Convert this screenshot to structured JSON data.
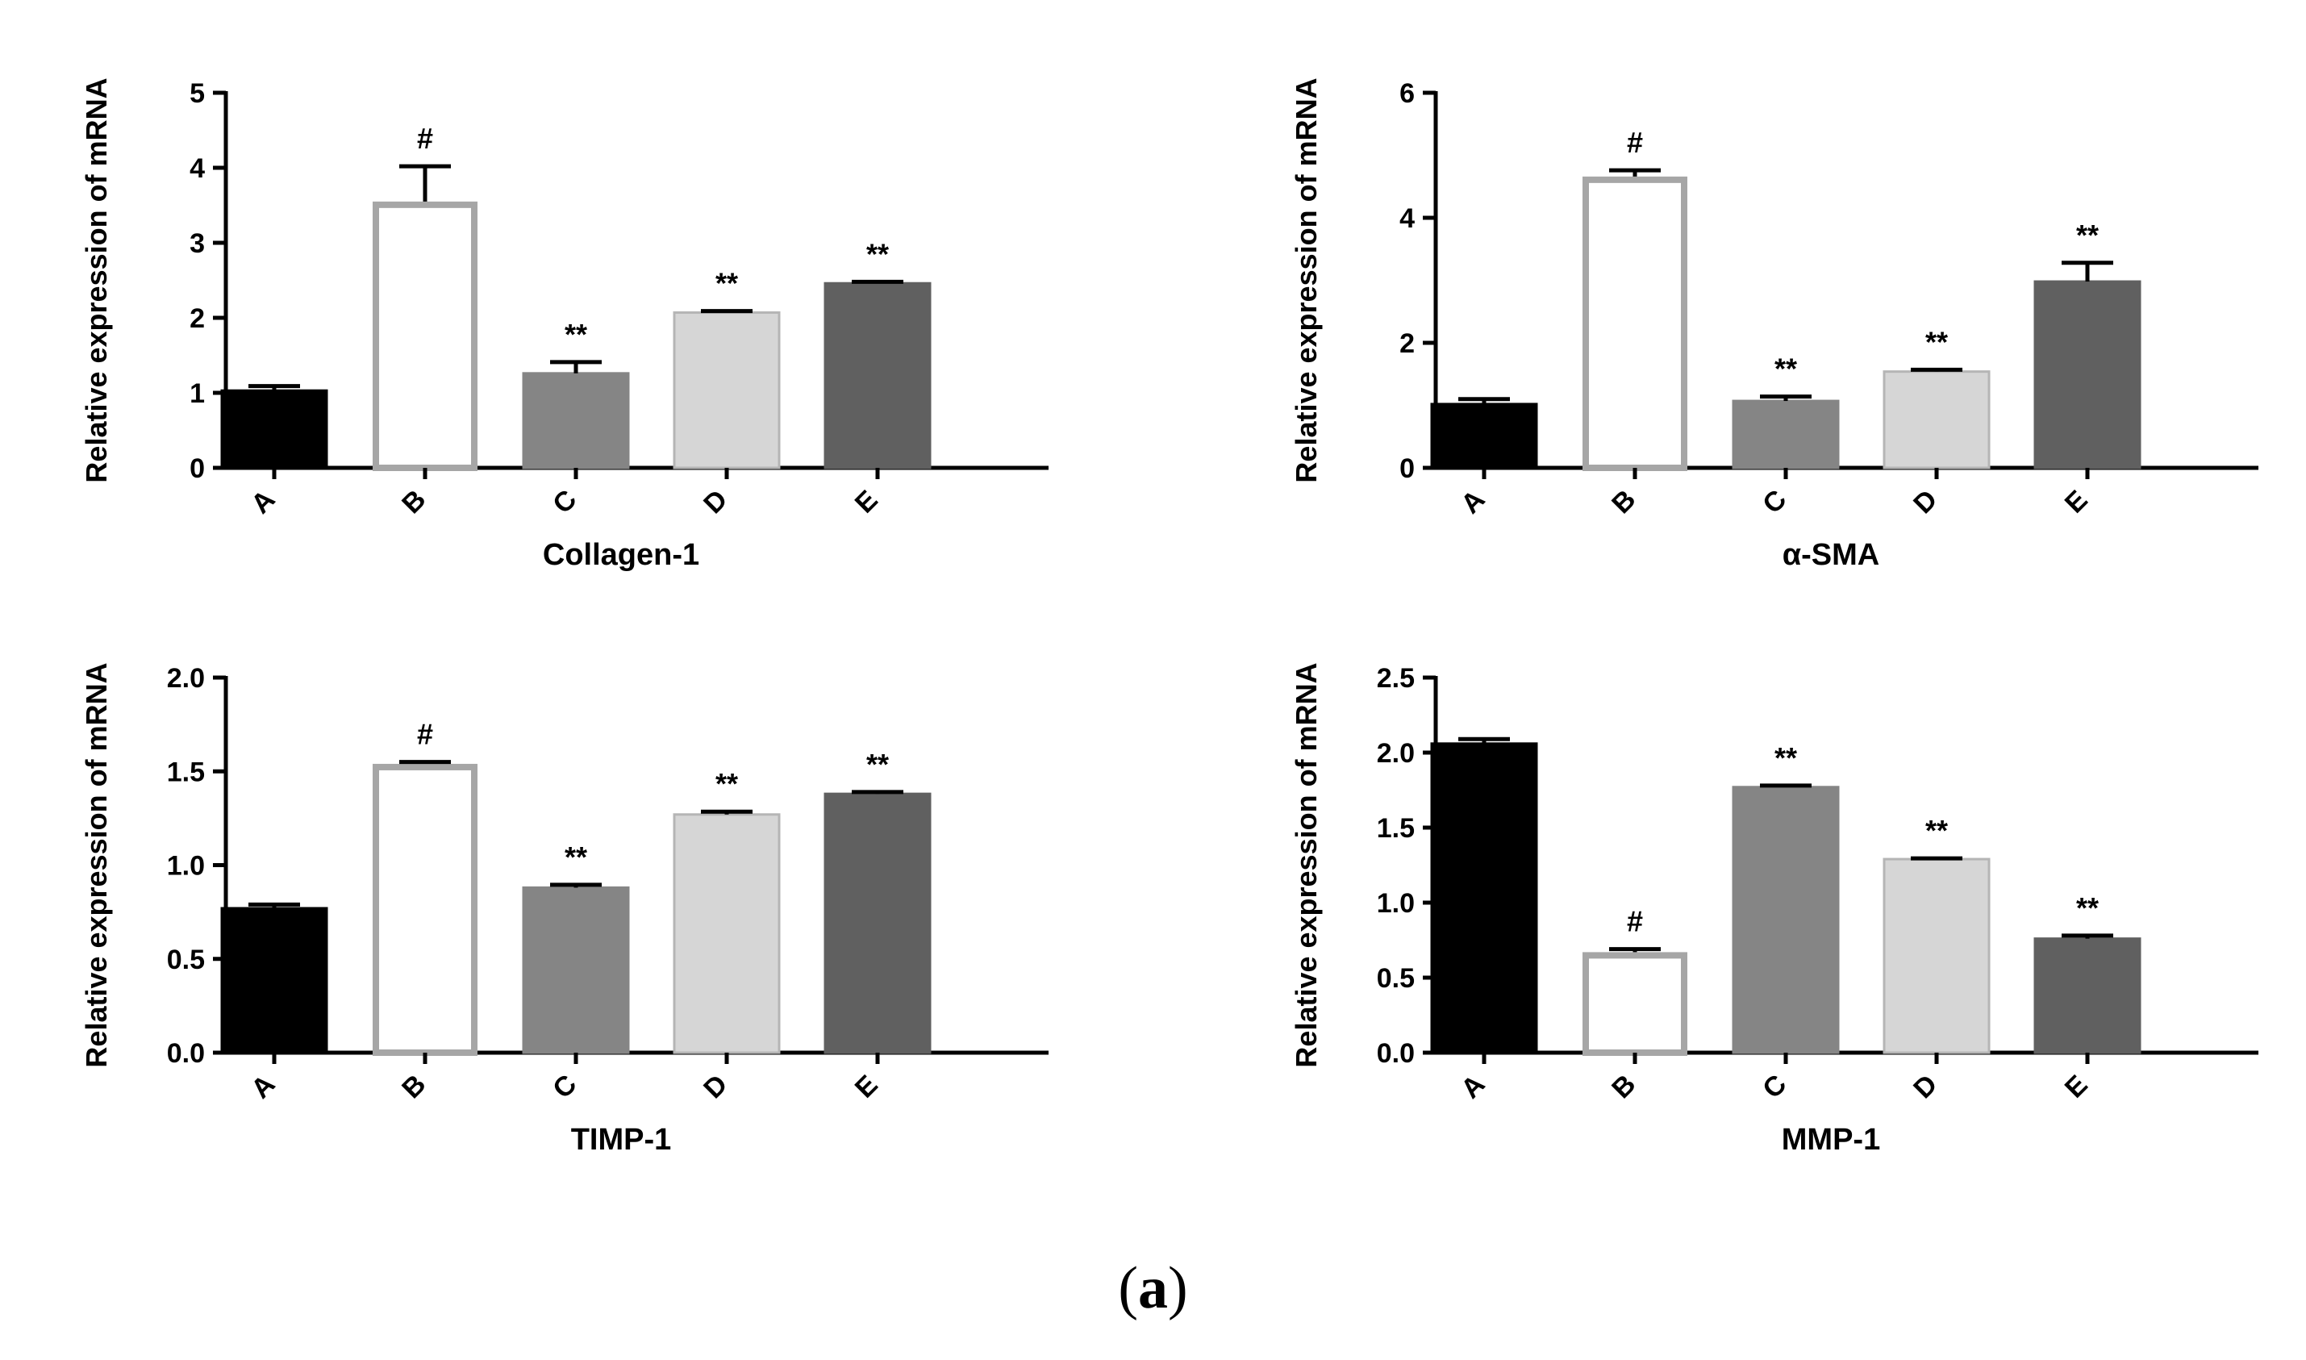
{
  "caption": {
    "open": "(",
    "letter": "a",
    "close": ")"
  },
  "chart_data": [
    {
      "type": "bar",
      "title": "",
      "xlabel": "Collagen-1",
      "ylabel": "Relative  expression of mRNA",
      "categories": [
        "A",
        "B",
        "C",
        "D",
        "E"
      ],
      "values": [
        1.03,
        3.55,
        1.26,
        2.07,
        2.46
      ],
      "errors": [
        0.06,
        0.47,
        0.15,
        0.02,
        0.02
      ],
      "significance": [
        "",
        "#",
        "**",
        "**",
        "**"
      ],
      "ylim": [
        0,
        5
      ],
      "yticks": [
        "0",
        "1",
        "2",
        "3",
        "4",
        "5"
      ],
      "colors": {
        "fill": [
          "#000000",
          "#ffffff",
          "#858585",
          "#d6d6d6",
          "#606060"
        ],
        "stroke": [
          "#000000",
          "#a6a6a6",
          "#858585",
          "#b5b5b5",
          "#606060"
        ]
      }
    },
    {
      "type": "bar",
      "title": "",
      "xlabel": "α-SMA",
      "ylabel": "Relative  expression of mRNA",
      "categories": [
        "A",
        "B",
        "C",
        "D",
        "E"
      ],
      "values": [
        1.02,
        4.66,
        1.07,
        1.54,
        2.98
      ],
      "errors": [
        0.08,
        0.1,
        0.07,
        0.03,
        0.3
      ],
      "significance": [
        "",
        "#",
        "**",
        "**",
        "**"
      ],
      "ylim": [
        0,
        6
      ],
      "yticks": [
        "0",
        "2",
        "4",
        "6"
      ],
      "colors": {
        "fill": [
          "#000000",
          "#ffffff",
          "#858585",
          "#d6d6d6",
          "#606060"
        ],
        "stroke": [
          "#000000",
          "#a6a6a6",
          "#858585",
          "#b5b5b5",
          "#606060"
        ]
      }
    },
    {
      "type": "bar",
      "title": "",
      "xlabel": "TIMP-1",
      "ylabel": "Relative  expression of mRNA",
      "categories": [
        "A",
        "B",
        "C",
        "D",
        "E"
      ],
      "values": [
        0.77,
        1.54,
        0.88,
        1.27,
        1.38
      ],
      "errors": [
        0.02,
        0.01,
        0.015,
        0.015,
        0.01
      ],
      "significance": [
        "",
        "#",
        "**",
        "**",
        "**"
      ],
      "ylim": [
        0,
        2.0
      ],
      "yticks": [
        "0.0",
        "0.5",
        "1.0",
        "1.5",
        "2.0"
      ],
      "colors": {
        "fill": [
          "#000000",
          "#ffffff",
          "#858585",
          "#d6d6d6",
          "#606060"
        ],
        "stroke": [
          "#000000",
          "#a6a6a6",
          "#858585",
          "#b5b5b5",
          "#606060"
        ]
      }
    },
    {
      "type": "bar",
      "title": "",
      "xlabel": "MMP-1",
      "ylabel": "Relative  expression of mRNA",
      "categories": [
        "A",
        "B",
        "C",
        "D",
        "E"
      ],
      "values": [
        2.06,
        0.67,
        1.77,
        1.29,
        0.76
      ],
      "errors": [
        0.03,
        0.02,
        0.01,
        0.005,
        0.02
      ],
      "significance": [
        "",
        "#",
        "**",
        "**",
        "**"
      ],
      "ylim": [
        0,
        2.5
      ],
      "yticks": [
        "0.0",
        "0.5",
        "1.0",
        "1.5",
        "2.0",
        "2.5"
      ],
      "colors": {
        "fill": [
          "#000000",
          "#ffffff",
          "#858585",
          "#d6d6d6",
          "#606060"
        ],
        "stroke": [
          "#000000",
          "#a6a6a6",
          "#858585",
          "#b5b5b5",
          "#606060"
        ]
      }
    }
  ]
}
